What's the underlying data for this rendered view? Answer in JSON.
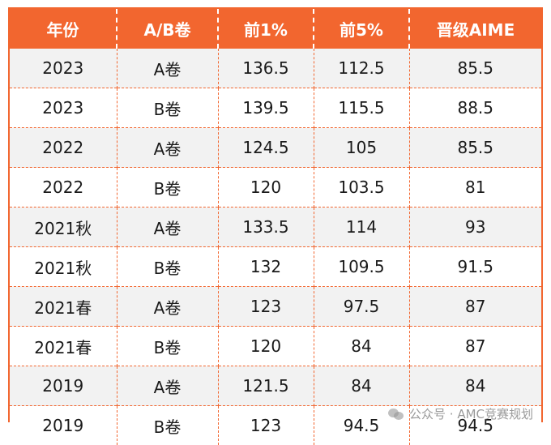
{
  "table": {
    "headers": [
      "年份",
      "A/B卷",
      "前1%",
      "前5%",
      "晋级AIME"
    ],
    "rows": [
      [
        "2023",
        "A卷",
        "136.5",
        "112.5",
        "85.5"
      ],
      [
        "2023",
        "B卷",
        "139.5",
        "115.5",
        "88.5"
      ],
      [
        "2022",
        "A卷",
        "124.5",
        "105",
        "85.5"
      ],
      [
        "2022",
        "B卷",
        "120",
        "103.5",
        "81"
      ],
      [
        "2021秋",
        "A卷",
        "133.5",
        "114",
        "93"
      ],
      [
        "2021秋",
        "B卷",
        "132",
        "109.5",
        "91.5"
      ],
      [
        "2021春",
        "A卷",
        "123",
        "97.5",
        "87"
      ],
      [
        "2021春",
        "B卷",
        "120",
        "84",
        "87"
      ],
      [
        "2019",
        "A卷",
        "121.5",
        "84",
        "84"
      ],
      [
        "2019",
        "B卷",
        "123",
        "94.5",
        "94.5"
      ]
    ]
  },
  "watermark": {
    "text": "公众号 · AMC竞赛规划",
    "icon": "wechat-icon"
  },
  "colors": {
    "accent": "#f2662f",
    "stripe": "#f2f2f2"
  }
}
